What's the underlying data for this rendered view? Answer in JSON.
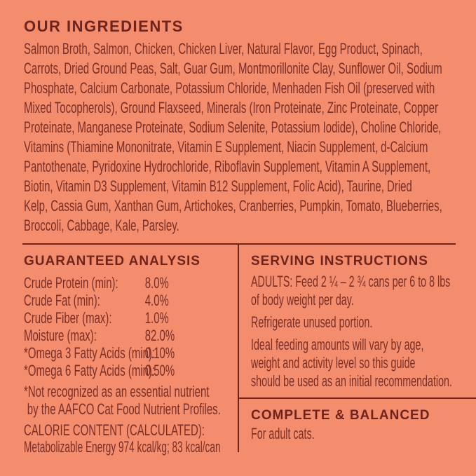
{
  "panel": {
    "background_color": "#F38D6E",
    "heading_color": "#6E231D",
    "body_color": "#7A2E26",
    "divider_color": "#6E231D"
  },
  "ingredients": {
    "title": "OUR INGREDIENTS",
    "lines": [
      "Salmon Broth, Salmon, Chicken, Chicken Liver, Natural Flavor, Egg Product, Spinach,",
      "Carrots, Dried Ground Peas, Salt, Guar Gum, Montmorillonite Clay, Sunflower Oil, Sodium",
      "Phosphate, Calcium Carbonate, Potassium Chloride, Menhaden Fish Oil (preserved with",
      "Mixed Tocopherols), Ground Flaxseed, Minerals (Iron Proteinate, Zinc Proteinate, Copper",
      "Proteinate, Manganese Proteinate, Sodium Selenite, Potassium Iodide), Choline Chloride,",
      "Vitamins (Thiamine Mononitrate, Vitamin E Supplement, Niacin Supplement, d-Calcium",
      "Pantothenate, Pyridoxine Hydrochloride, Riboflavin Supplement, Vitamin A Supplement,",
      "Biotin, Vitamin D3 Supplement, Vitamin B12 Supplement, Folic Acid), Taurine, Dried",
      "Kelp, Cassia Gum, Xanthan Gum, Artichokes, Cranberries, Pumpkin, Tomato, Blueberries,",
      "Broccoli, Cabbage, Kale, Parsley."
    ]
  },
  "guaranteed_analysis": {
    "title": "GUARANTEED ANALYSIS",
    "rows": [
      {
        "label": "Crude Protein (min):",
        "value": "8.0%"
      },
      {
        "label": "Crude Fat (min):",
        "value": "4.0%"
      },
      {
        "label": "Crude Fiber (max):",
        "value": "1.0%"
      },
      {
        "label": "Moisture (max):",
        "value": "82.0%"
      },
      {
        "label": "*Omega 3 Fatty Acids (min):",
        "value": "0.10%"
      },
      {
        "label": "*Omega 6 Fatty Acids (min):",
        "value": "0.50%"
      }
    ],
    "footnote_lines": [
      "*Not recognized as an essential nutrient",
      "by the AAFCO Cat Food Nutrient Profiles."
    ],
    "calorie_title": "CALORIE CONTENT (CALCULATED):",
    "calorie_text": "Metabolizable Energy 974 kcal/kg; 83 kcal/can"
  },
  "serving_instructions": {
    "title": "SERVING INSTRUCTIONS",
    "paragraphs": [
      {
        "lines": [
          "ADULTS: Feed 2 ¼ – 2 ¾ cans per 6 to 8 lbs",
          "of body weight per day."
        ]
      },
      {
        "lines": [
          "Refrigerate unused portion."
        ]
      },
      {
        "lines": [
          "Ideal feeding amounts will vary by age,",
          "weight and activity level so this guide",
          "should be used as an initial recommendation."
        ]
      }
    ]
  },
  "complete_balanced": {
    "title": "COMPLETE & BALANCED",
    "text": "For adult cats."
  }
}
